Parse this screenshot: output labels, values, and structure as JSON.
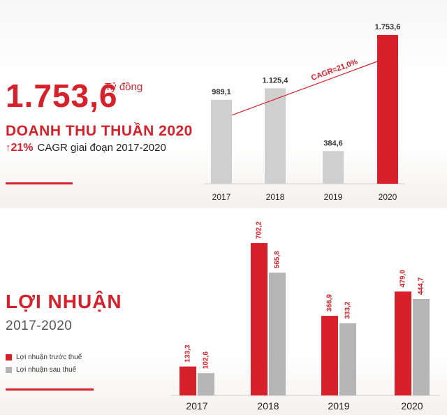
{
  "revenue": {
    "headline_value": "1.753,6",
    "unit": "Tỷ đồng",
    "title": "DOANH THU THUẦN 2020",
    "growth_arrow": "↑",
    "growth_pct": "21%",
    "growth_text": "CAGR giai đoạn 2017-2020",
    "cagr_label": "CAGR=21,0%"
  },
  "profit": {
    "title": "LỢI NHUẬN",
    "subtitle": "2017-2020"
  },
  "colors": {
    "red": "#d8202b",
    "gray": "#cfcfcf",
    "gray_dark": "#b5b5b5"
  },
  "chart_data": [
    {
      "type": "bar",
      "categories": [
        "2017",
        "2018",
        "2019",
        "2020"
      ],
      "values": [
        989.1,
        1125.4,
        384.6,
        1753.6
      ],
      "value_labels": [
        "989,1",
        "1.125,4",
        "384,6",
        "1.753,6"
      ],
      "highlight_index": 3,
      "trend_label": "CAGR=21,0%",
      "ylim": [
        0,
        1753.6
      ]
    },
    {
      "type": "bar",
      "categories": [
        "2017",
        "2018",
        "2019",
        "2020"
      ],
      "series": [
        {
          "name": "Lợi nhuận trước thuế",
          "values": [
            133.3,
            702.2,
            366.9,
            479.0
          ],
          "labels": [
            "133,3",
            "702,2",
            "366,9",
            "479,0"
          ]
        },
        {
          "name": "Lợi nhuận sau thuế",
          "values": [
            102.6,
            565.8,
            333.2,
            444.7
          ],
          "labels": [
            "102,6",
            "565,8",
            "333,2",
            "444,7"
          ]
        }
      ],
      "ylim": [
        0,
        702.2
      ]
    }
  ]
}
